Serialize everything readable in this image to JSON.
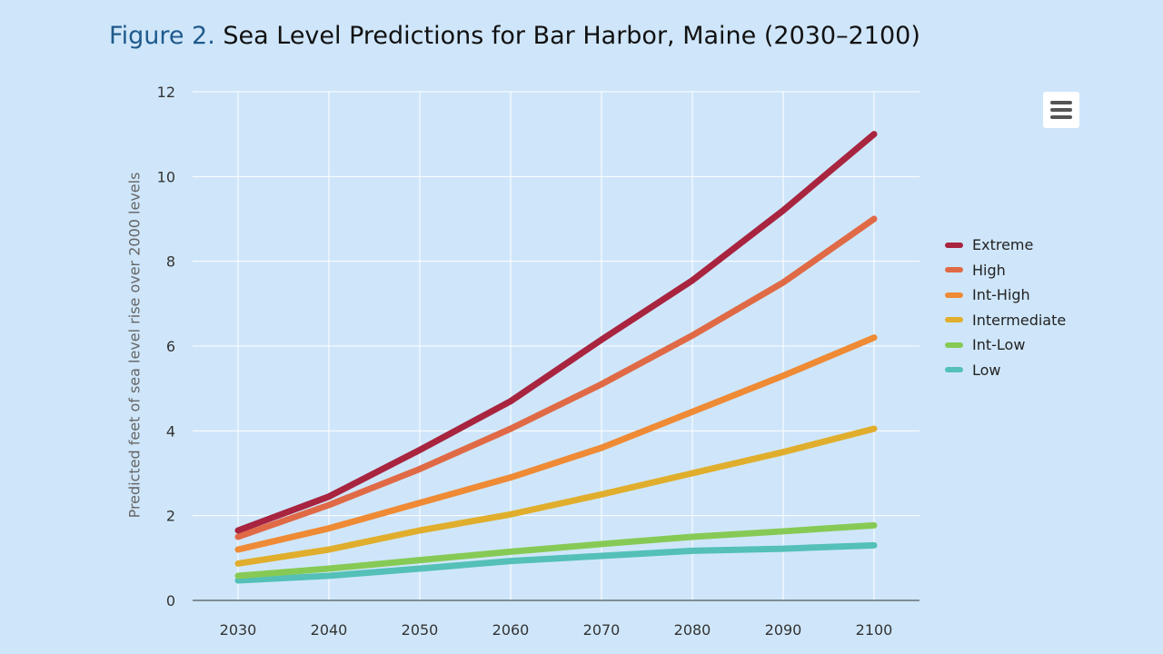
{
  "title": {
    "figure_label": "Figure 2.",
    "text": "Sea Level Predictions for Bar Harbor, Maine (2030–2100)"
  },
  "menu": {
    "icon": "hamburger-menu-icon"
  },
  "chart_data": {
    "type": "line",
    "title": "Sea Level Predictions for Bar Harbor, Maine (2030–2100)",
    "xlabel": "",
    "ylabel": "Predicted feet of sea level rise over 2000 levels",
    "x": [
      2030,
      2040,
      2050,
      2060,
      2070,
      2080,
      2090,
      2100
    ],
    "xtick_labels": [
      "2030",
      "2040",
      "2050",
      "2060",
      "2070",
      "2080",
      "2090",
      "2100"
    ],
    "ylim": [
      0,
      12
    ],
    "yticks": [
      0,
      2,
      4,
      6,
      8,
      10,
      12
    ],
    "ytick_labels": [
      "0",
      "2",
      "4",
      "6",
      "8",
      "10",
      "12"
    ],
    "grid": true,
    "legend_position": "right",
    "series": [
      {
        "name": "Extreme",
        "color": "#a8243f",
        "values": [
          1.65,
          2.45,
          3.55,
          4.7,
          6.15,
          7.55,
          9.2,
          11.0
        ]
      },
      {
        "name": "High",
        "color": "#e06a46",
        "values": [
          1.5,
          2.25,
          3.1,
          4.05,
          5.1,
          6.25,
          7.5,
          9.0
        ]
      },
      {
        "name": "Int-High",
        "color": "#ef8a35",
        "values": [
          1.2,
          1.7,
          2.3,
          2.9,
          3.6,
          4.45,
          5.3,
          6.2
        ]
      },
      {
        "name": "Intermediate",
        "color": "#e0ae2c",
        "values": [
          0.87,
          1.2,
          1.65,
          2.03,
          2.5,
          3.0,
          3.5,
          4.05
        ]
      },
      {
        "name": "Int-Low",
        "color": "#86ca55",
        "values": [
          0.58,
          0.75,
          0.95,
          1.15,
          1.33,
          1.5,
          1.63,
          1.77
        ]
      },
      {
        "name": "Low",
        "color": "#54c0b8",
        "values": [
          0.47,
          0.58,
          0.75,
          0.93,
          1.05,
          1.17,
          1.22,
          1.3
        ]
      }
    ]
  }
}
